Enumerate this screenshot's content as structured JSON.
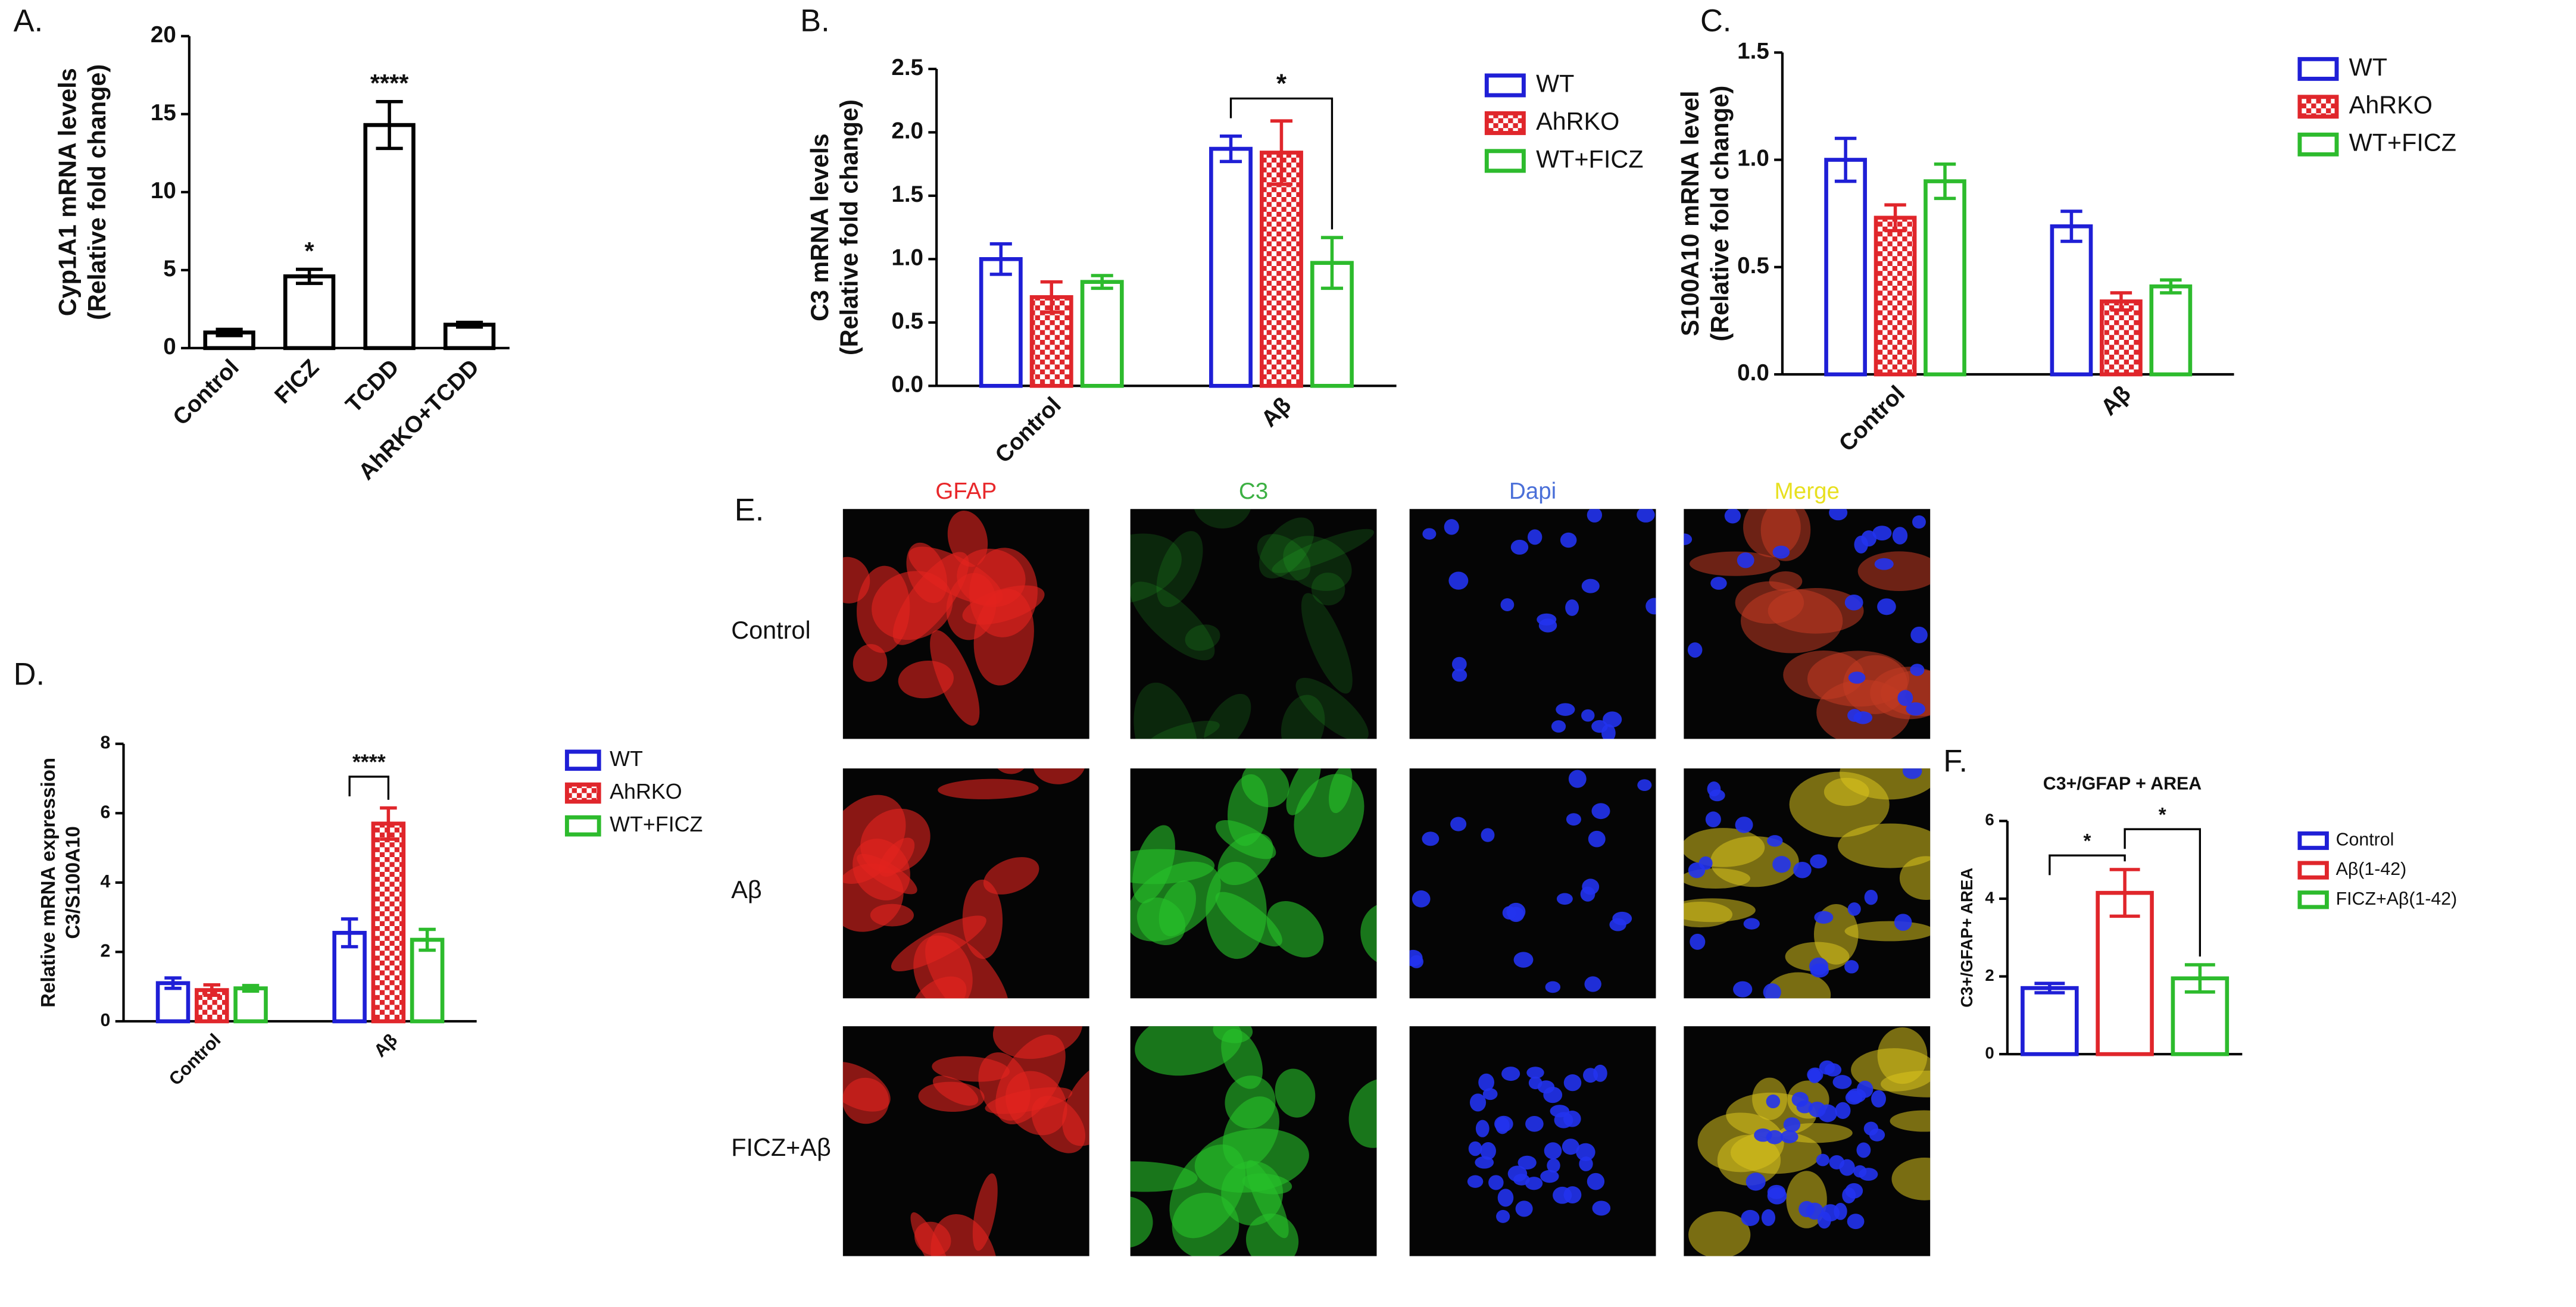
{
  "chart_data": [
    {
      "type": "bar",
      "panel": "A.",
      "ylabel": [
        "Cyp1A1 mRNA levels",
        "(Relative fold change)"
      ],
      "categories": [
        "Control",
        "FICZ",
        "TCDD",
        "AhRKO+TCDD"
      ],
      "values": [
        1.0,
        4.6,
        14.3,
        1.5
      ],
      "errors": [
        0.2,
        0.45,
        1.5,
        0.15
      ],
      "significance": [
        null,
        "*",
        "****",
        null
      ],
      "color": "#000000",
      "ylim": [
        0,
        20
      ],
      "yticks": [
        0,
        5,
        10,
        15,
        20
      ]
    },
    {
      "type": "bar",
      "panel": "B.",
      "ylabel": [
        "C3 mRNA levels",
        "(Relative fold change)"
      ],
      "categories": [
        "Control",
        "Aβ"
      ],
      "series": [
        {
          "name": "WT",
          "color": "#1f1fd6",
          "values": [
            1.0,
            1.87
          ],
          "errors": [
            0.12,
            0.1
          ]
        },
        {
          "name": "AhRKO",
          "color": "#e0262b",
          "pattern": "checker",
          "values": [
            0.7,
            1.84
          ],
          "errors": [
            0.12,
            0.25
          ]
        },
        {
          "name": "WT+FICZ",
          "color": "#2dbb2d",
          "values": [
            0.82,
            0.97
          ],
          "errors": [
            0.05,
            0.2
          ]
        }
      ],
      "annotations": [
        "*"
      ],
      "ylim": [
        0,
        2.5
      ],
      "yticks": [
        {
          "value": 0,
          "label": "0.0"
        },
        0.5,
        {
          "value": 1,
          "label": "1.0"
        },
        1.5,
        {
          "value": 2,
          "label": "2.0"
        },
        2.5
      ]
    },
    {
      "type": "bar",
      "panel": "C.",
      "ylabel": [
        "S100A10 mRNA level",
        "(Relative fold change)"
      ],
      "categories": [
        "Control",
        "Aβ"
      ],
      "series": [
        {
          "name": "WT",
          "color": "#1f1fd6",
          "values": [
            1.0,
            0.69
          ],
          "errors": [
            0.1,
            0.07
          ]
        },
        {
          "name": "AhRKO",
          "color": "#e0262b",
          "pattern": "checker",
          "values": [
            0.73,
            0.34
          ],
          "errors": [
            0.06,
            0.04
          ]
        },
        {
          "name": "WT+FICZ",
          "color": "#2dbb2d",
          "values": [
            0.9,
            0.41
          ],
          "errors": [
            0.08,
            0.03
          ]
        }
      ],
      "ylim": [
        0,
        1.5
      ],
      "yticks": [
        {
          "value": 0,
          "label": "0.0"
        },
        0.5,
        {
          "value": 1,
          "label": "1.0"
        },
        1.5
      ]
    },
    {
      "type": "bar",
      "panel": "D.",
      "ylabel": [
        "Relative mRNA expression",
        "C3/S100A10"
      ],
      "categories": [
        "Control",
        "Aβ"
      ],
      "series": [
        {
          "name": "WT",
          "color": "#1f1fd6",
          "values": [
            1.1,
            2.55
          ],
          "errors": [
            0.15,
            0.4
          ]
        },
        {
          "name": "AhRKO",
          "color": "#e0262b",
          "pattern": "checker",
          "values": [
            0.9,
            5.7
          ],
          "errors": [
            0.15,
            0.45
          ]
        },
        {
          "name": "WT+FICZ",
          "color": "#2dbb2d",
          "values": [
            0.95,
            2.35
          ],
          "errors": [
            0.08,
            0.3
          ]
        }
      ],
      "annotations": [
        "****"
      ],
      "ylim": [
        0,
        8
      ],
      "yticks": [
        0,
        2,
        4,
        6,
        8
      ]
    },
    {
      "type": "bar",
      "panel": "F.",
      "title": "C3+/GFAP + AREA",
      "ylabel": [
        "C3+/GFAP+ AREA"
      ],
      "categories": [
        null
      ],
      "series": [
        {
          "name": "Control",
          "color": "#1f1fd6",
          "values": [
            1.7
          ],
          "errors": [
            0.12
          ]
        },
        {
          "name": "Aβ(1-42)",
          "color": "#e0262b",
          "values": [
            4.15
          ],
          "errors": [
            0.6
          ]
        },
        {
          "name": "FICZ+Aβ(1-42)",
          "color": "#2dbb2d",
          "values": [
            1.95
          ],
          "errors": [
            0.35
          ]
        }
      ],
      "annotations": [
        "*",
        "*"
      ],
      "ylim": [
        0,
        6
      ],
      "yticks": [
        0,
        2,
        4,
        6
      ]
    }
  ],
  "image_panel": {
    "label": "E.",
    "columns": [
      "GFAP",
      "C3",
      "Dapi",
      "Merge"
    ],
    "column_colors": [
      "#e8282b",
      "#3cb043",
      "#4a6fd8",
      "#e8e020"
    ],
    "rows": [
      "Control",
      "Aβ",
      "FICZ+Aβ"
    ]
  }
}
